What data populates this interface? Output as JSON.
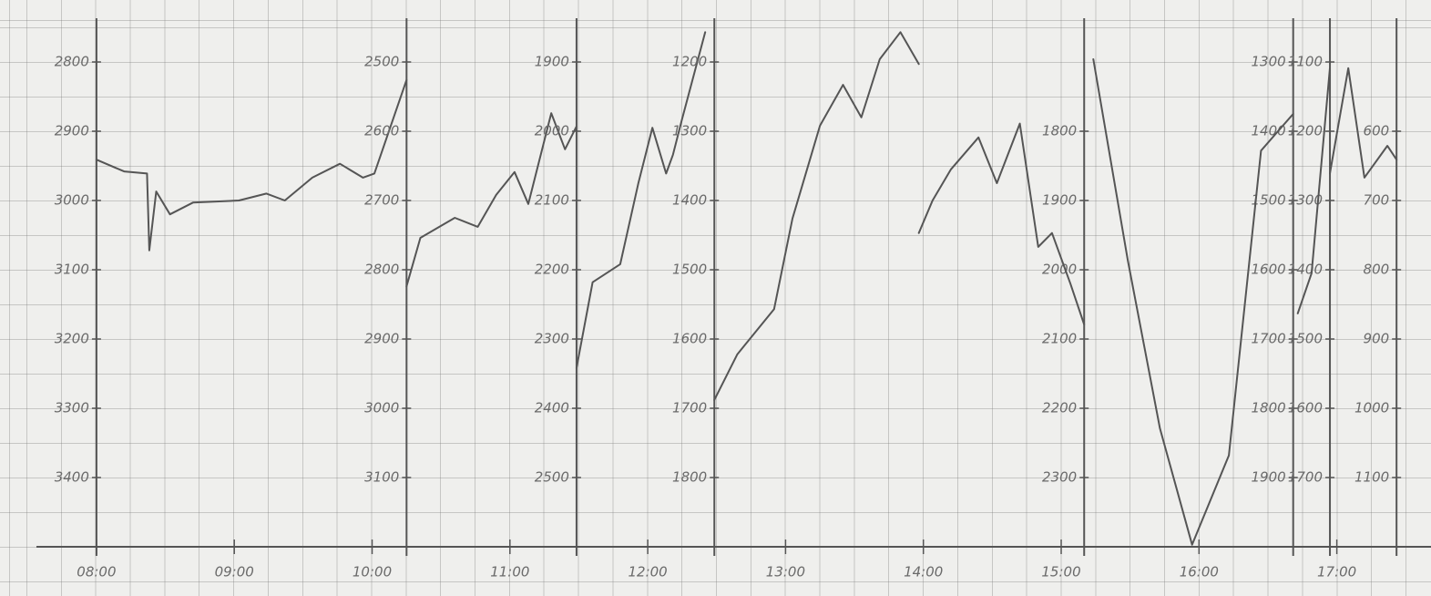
{
  "chart_data": {
    "type": "line",
    "color": "#555555",
    "xlim": [
      "07:18",
      "17:41"
    ],
    "xticks": [
      "08:00",
      "09:00",
      "10:00",
      "11:00",
      "12:00",
      "13:00",
      "14:00",
      "15:00",
      "16:00",
      "17:00"
    ],
    "panels": [
      {
        "y_axis": "left",
        "ylim": [
          3500,
          2750
        ],
        "yticks": [
          2800,
          2900,
          3000,
          3100,
          3200,
          3300,
          3400
        ],
        "x": [
          "08:00",
          "08:12",
          "08:22",
          "08:23",
          "08:26",
          "08:32",
          "08:42",
          "09:02",
          "09:14",
          "09:22",
          "09:34",
          "09:46",
          "09:56",
          "10:01",
          "10:15"
        ],
        "values": [
          2941,
          2958,
          2961,
          3072,
          2987,
          3020,
          3003,
          3000,
          2990,
          3000,
          2967,
          2947,
          2967,
          2961,
          2826
        ]
      },
      {
        "y_axis": "left",
        "ylim": [
          3200,
          2450
        ],
        "yticks": [
          2500,
          2600,
          2700,
          2800,
          2900,
          3000,
          3100
        ],
        "x": [
          "10:15",
          "10:21",
          "10:36",
          "10:46",
          "10:54",
          "11:02",
          "11:08",
          "11:18",
          "11:24",
          "11:29"
        ],
        "values": [
          2824,
          2754,
          2725,
          2738,
          2692,
          2659,
          2705,
          2574,
          2626,
          2593
        ]
      },
      {
        "y_axis": "left",
        "ylim": [
          2600,
          1850
        ],
        "yticks": [
          1900,
          2000,
          2100,
          2200,
          2300,
          2400,
          2500
        ],
        "x": [
          "11:29",
          "11:36",
          "11:48",
          "11:56",
          "12:02",
          "12:08",
          "12:11",
          "12:15",
          "12:25"
        ],
        "values": [
          2342,
          2218,
          2192,
          2074,
          1995,
          2061,
          2034,
          1982,
          1857
        ]
      },
      {
        "y_axis": "left",
        "ylim": [
          1900,
          1150
        ],
        "yticks": [
          1200,
          1300,
          1400,
          1500,
          1600,
          1700,
          1800
        ],
        "x": [
          "12:29",
          "12:39",
          "12:55",
          "13:03",
          "13:15",
          "13:25",
          "13:33",
          "13:41",
          "13:50",
          "13:58"
        ],
        "values": [
          1688,
          1622,
          1557,
          1426,
          1292,
          1233,
          1280,
          1196,
          1157,
          1203
        ]
      },
      {
        "y_axis": "right",
        "ylim": [
          2400,
          1650
        ],
        "yticks": [
          1800,
          1900,
          2000,
          2100,
          2200,
          2300
        ],
        "x": [
          "13:58",
          "14:04",
          "14:12",
          "14:24",
          "14:32",
          "14:42",
          "14:50",
          "14:56",
          "15:04",
          "15:10"
        ],
        "values": [
          1947,
          1900,
          1855,
          1809,
          1875,
          1789,
          1967,
          1947,
          2020,
          2079
        ]
      },
      {
        "y_axis": "right",
        "ylim": [
          2000,
          1250
        ],
        "yticks": [
          1300,
          1400,
          1500,
          1600,
          1700,
          1800,
          1900
        ],
        "x": [
          "15:14",
          "15:29",
          "15:43",
          "15:57",
          "16:13",
          "16:27",
          "16:41"
        ],
        "values": [
          1296,
          1586,
          1829,
          1997,
          1868,
          1428,
          1375
        ]
      },
      {
        "y_axis": "right",
        "ylim": [
          1800,
          1050
        ],
        "yticks": [
          1100,
          1200,
          1300,
          1400,
          1500,
          1600,
          1700
        ],
        "x": [
          "16:43",
          "16:49",
          "16:57"
        ],
        "values": [
          1463,
          1405,
          1109
        ]
      },
      {
        "y_axis": "right",
        "ylim": [
          1200,
          450
        ],
        "yticks": [
          600,
          700,
          800,
          900,
          1000,
          1100
        ],
        "x": [
          "16:57",
          "17:05",
          "17:12",
          "17:22",
          "17:26"
        ],
        "values": [
          661,
          509,
          667,
          621,
          641
        ]
      }
    ]
  }
}
